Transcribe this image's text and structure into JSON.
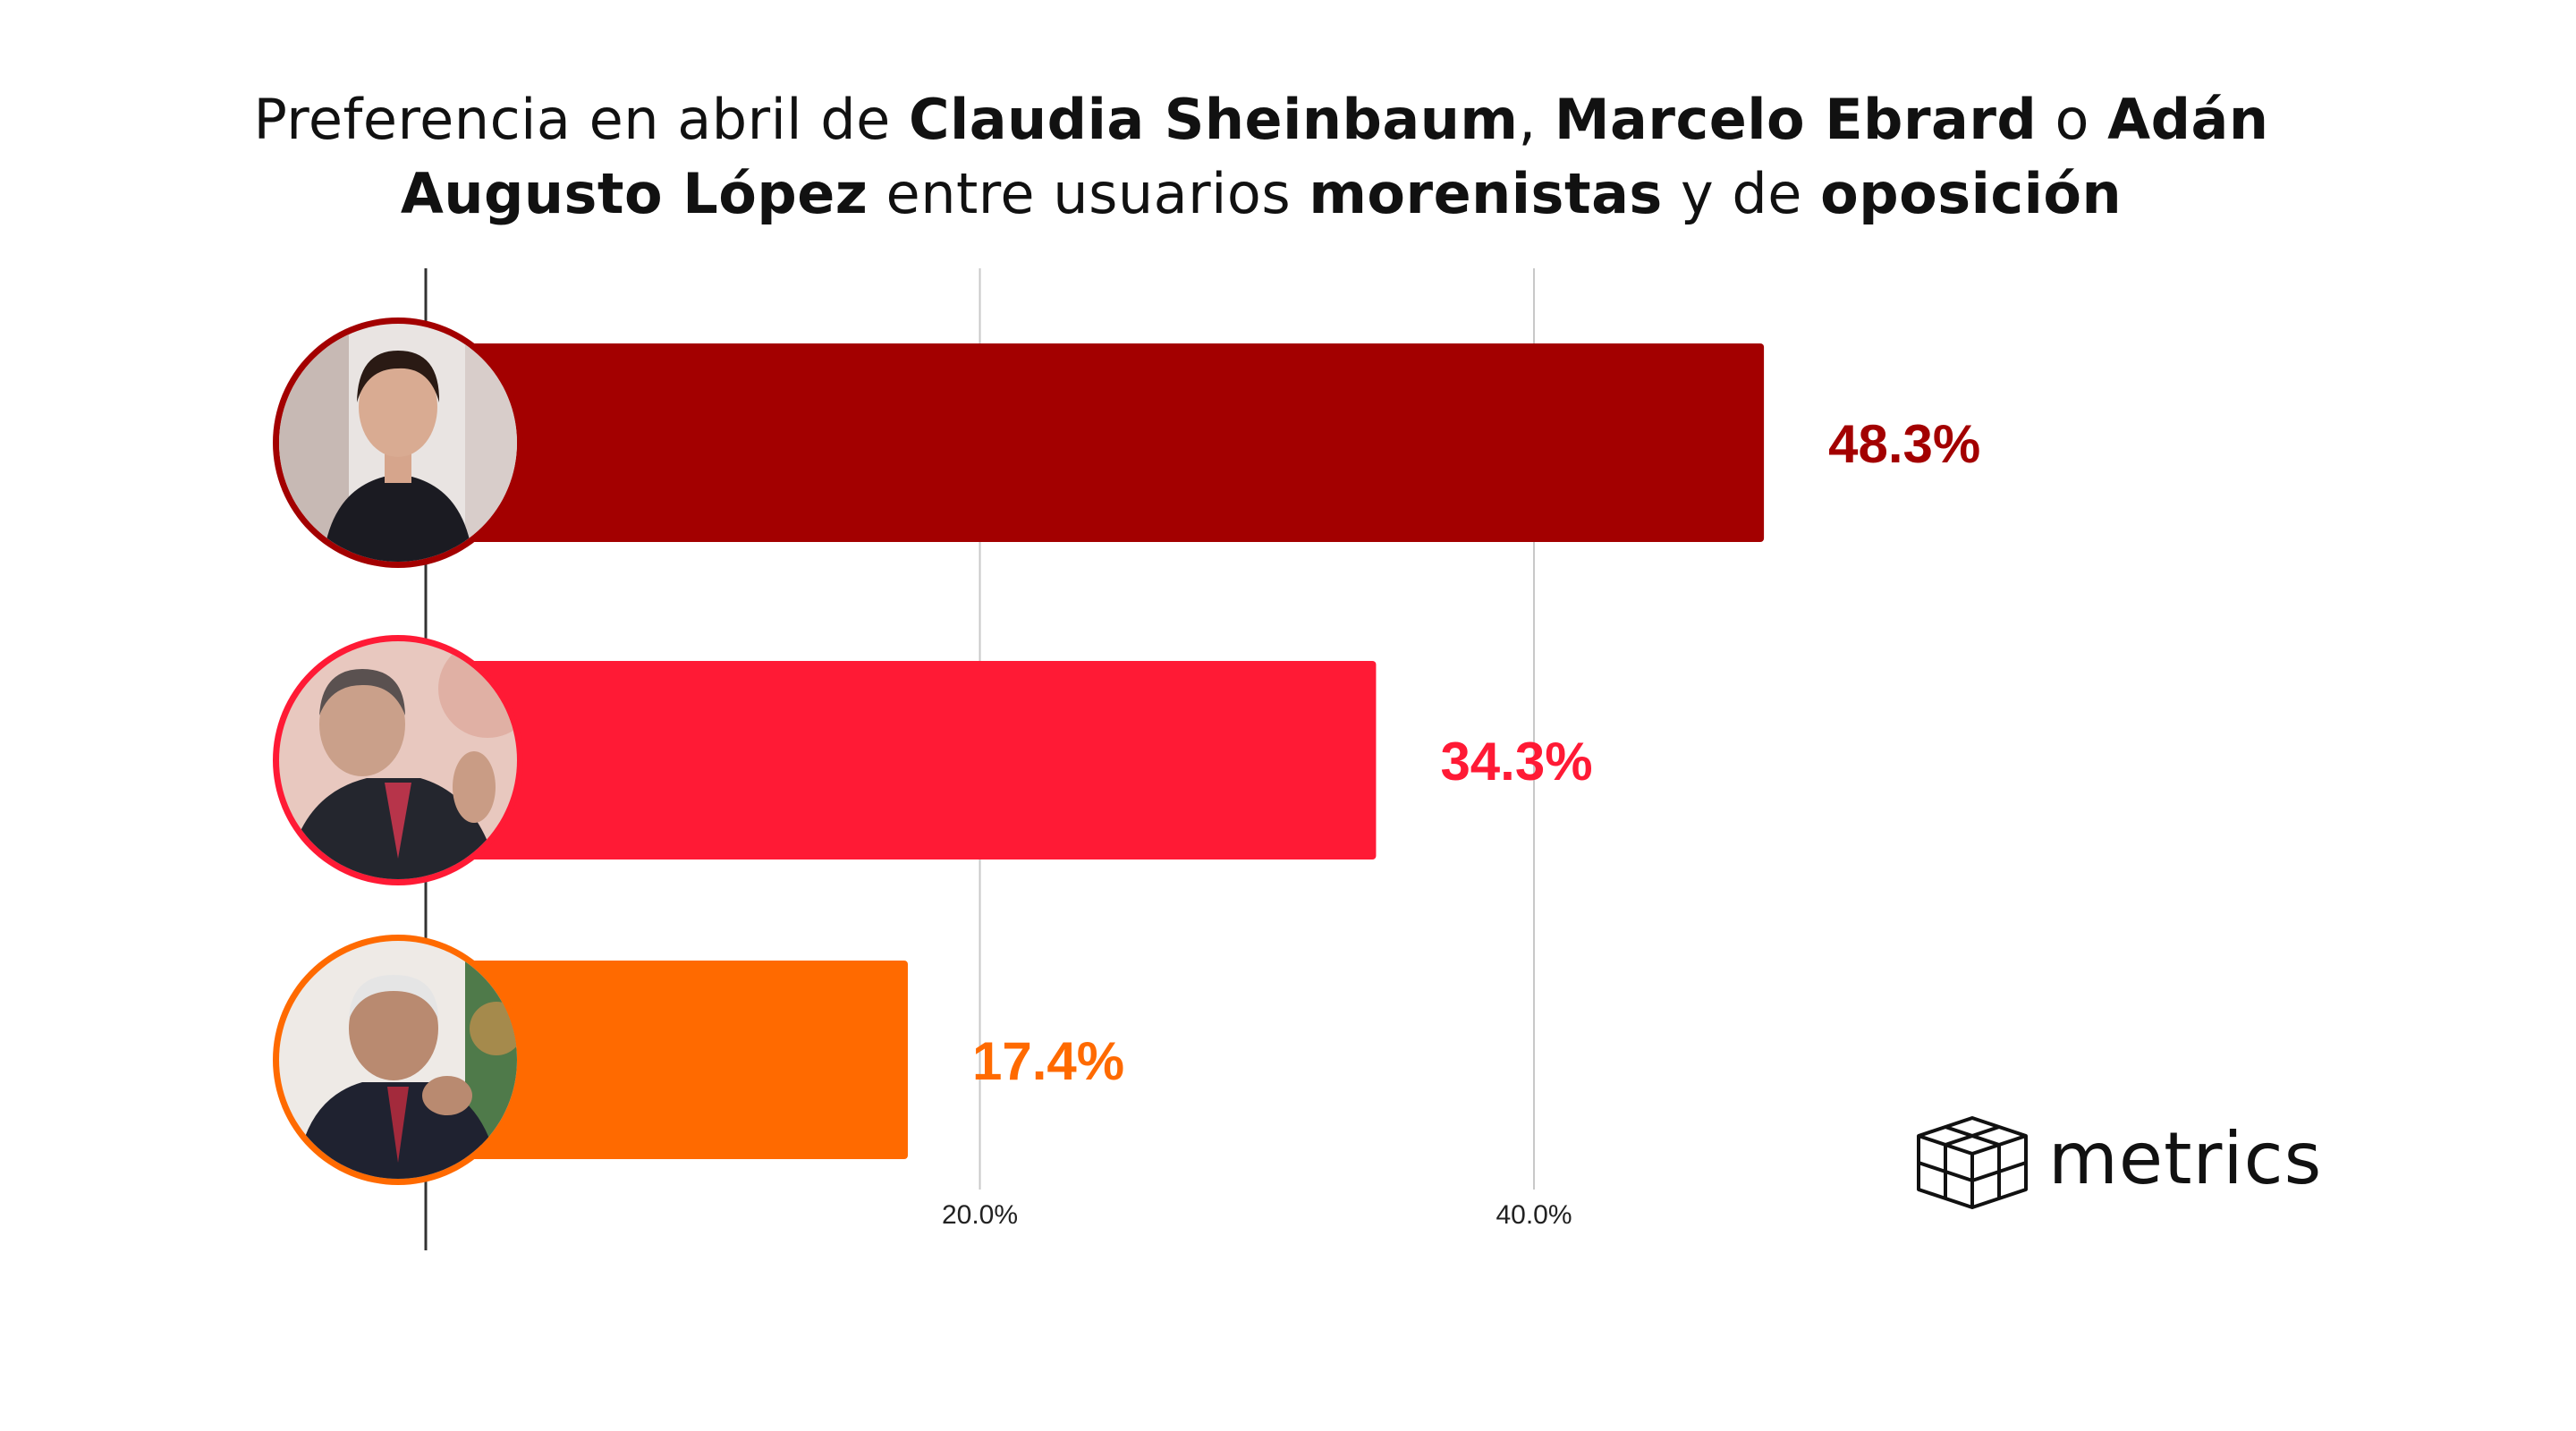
{
  "title": {
    "p1": "Preferencia en abril de ",
    "b1": "Claudia Sheinbaum",
    "p2": ", ",
    "b2": "Marcelo Ebrard",
    "p3": " o ",
    "b3": "Adán Augusto López",
    "p4": " entre usuarios ",
    "b4": "morenistas",
    "p5": " y de ",
    "b5": "oposición"
  },
  "chart_data": {
    "type": "bar",
    "orientation": "horizontal",
    "categories": [
      "Claudia Sheinbaum",
      "Marcelo Ebrard",
      "Adán Augusto López"
    ],
    "values": [
      48.3,
      34.3,
      17.4
    ],
    "labels": [
      "48.3%",
      "34.3%",
      "17.4%"
    ],
    "colors": [
      "#a30000",
      "#ff1a35",
      "#ff6a00"
    ],
    "xticks": [
      20,
      40
    ],
    "xtick_labels": [
      "20.0%",
      "40.0%"
    ],
    "xlim": [
      0,
      60
    ],
    "grid": true
  },
  "logo": {
    "text": "metrics"
  },
  "icons": [
    "avatar-photo-icon",
    "metrics-logo-icon"
  ]
}
